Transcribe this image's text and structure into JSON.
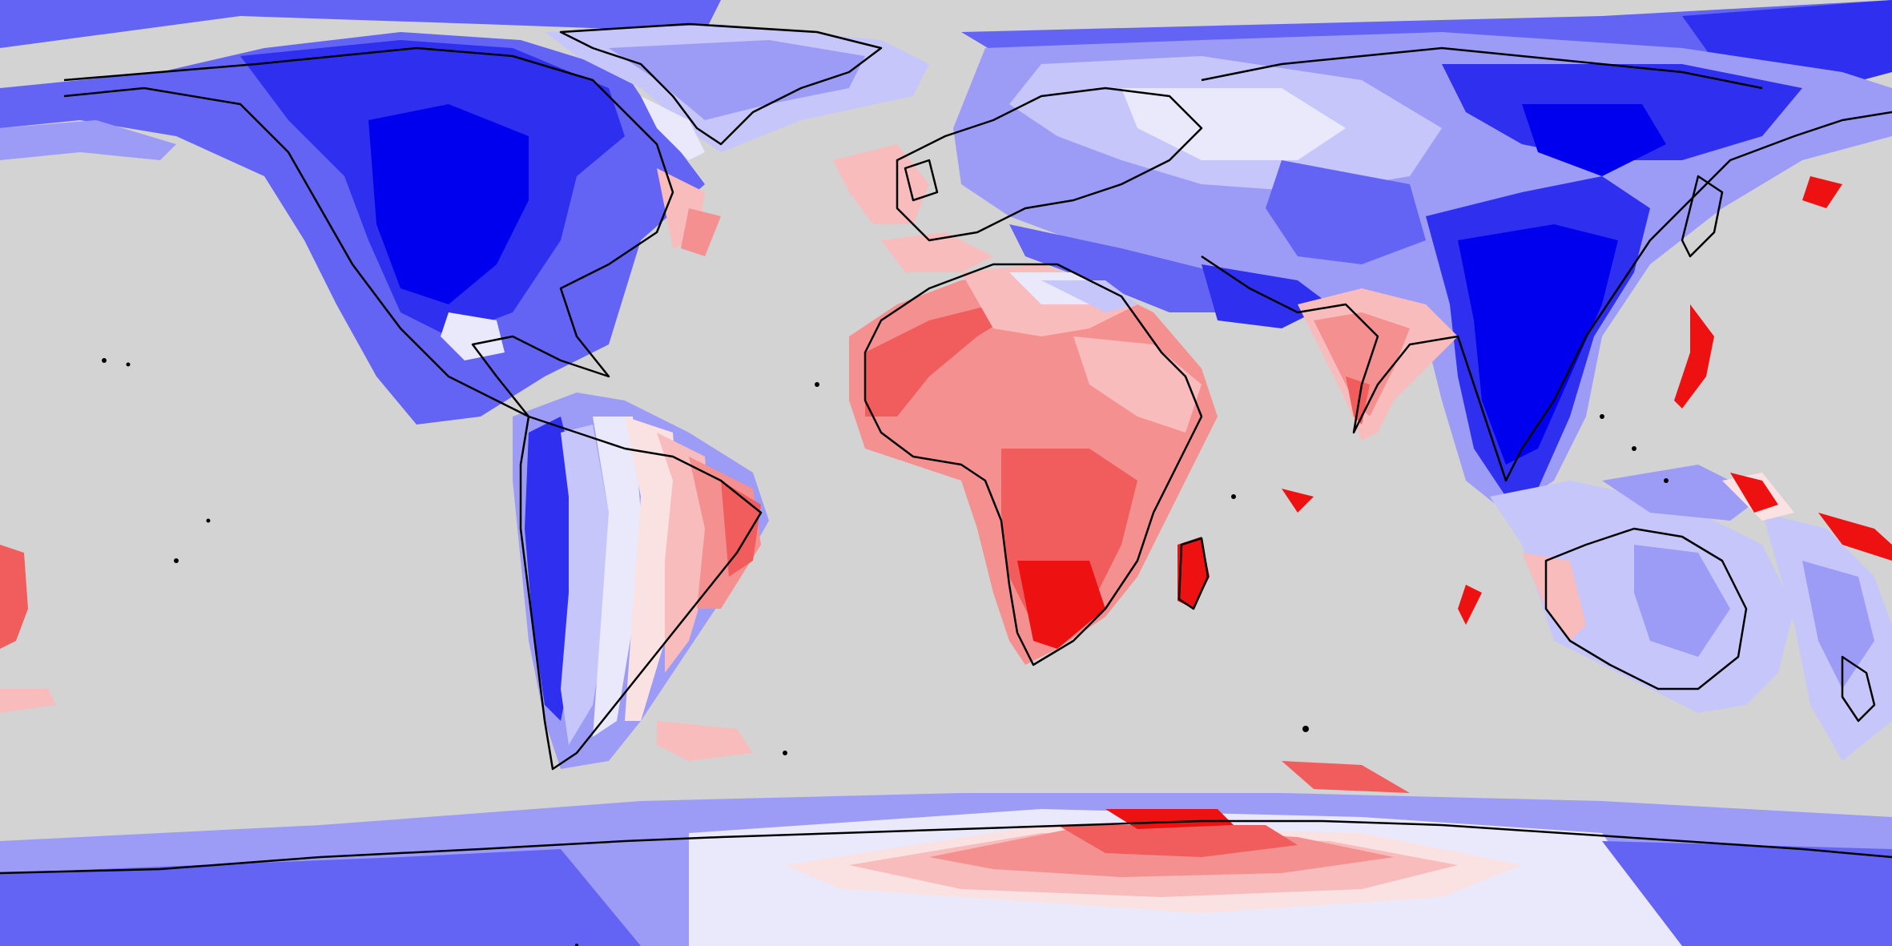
{
  "map": {
    "projection": "equirectangular",
    "ocean_color": "#d3d3d3",
    "coastline_color": "#000000",
    "color_ramp": {
      "blue_5": "#0000ee",
      "blue_4": "#2f2ff0",
      "blue_3": "#6464f4",
      "blue_2": "#9c9cf7",
      "blue_1": "#c6c6fa",
      "neutral": "#e9e9fb",
      "red_1": "#fbe2e2",
      "red_2": "#f9bcbc",
      "red_3": "#f59090",
      "red_4": "#f15c5c",
      "red_5": "#ee1111"
    }
  }
}
